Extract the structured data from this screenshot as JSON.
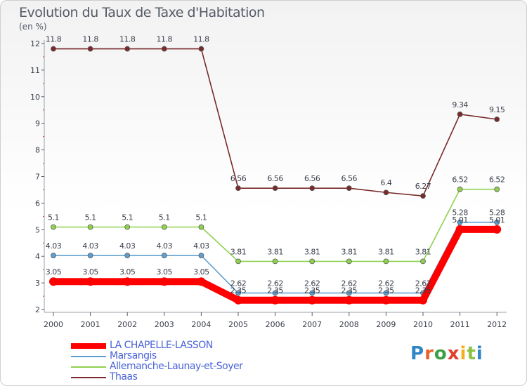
{
  "title": "Evolution du Taux de Taxe d'Habitation",
  "unit_label": "(en %)",
  "brand": {
    "text": "Proxiti",
    "letter_colors": [
      "#2f87c8",
      "#e8632b",
      "#3aa043",
      "#e23d2b",
      "#f2b01e",
      "#8ac341",
      "#2f87c8"
    ]
  },
  "chart_data": {
    "type": "line",
    "title": "Evolution du Taux de Taxe d'Habitation",
    "ylabel": "(en %)",
    "xlabel": "",
    "x": [
      "2000",
      "2001",
      "2002",
      "2003",
      "2004",
      "2005",
      "2006",
      "2007",
      "2008",
      "2009",
      "2010",
      "2011",
      "2012"
    ],
    "ylim": [
      2,
      12
    ],
    "yticks": [
      "2",
      "3",
      "4",
      "5",
      "6",
      "7",
      "8",
      "9",
      "10",
      "11",
      "12"
    ],
    "grid": false,
    "legend_position": "bottom-left",
    "series": [
      {
        "name": "LA CHAPELLE-LASSON",
        "color": "#ff0000",
        "emphasis": true,
        "values": [
          3.05,
          3.05,
          3.05,
          3.05,
          3.05,
          2.35,
          2.35,
          2.35,
          2.35,
          2.35,
          2.35,
          5.01,
          5.01
        ],
        "labels": [
          "3.05",
          "3.05",
          "3.05",
          "3.05",
          "3.05",
          "2.35",
          "2.35",
          "2.35",
          "2.35",
          "2.35",
          "2.35",
          "5.01",
          "5.01"
        ]
      },
      {
        "name": "Marsangis",
        "color": "#5f9fcf",
        "values": [
          4.03,
          4.03,
          4.03,
          4.03,
          4.03,
          2.62,
          2.62,
          2.62,
          2.62,
          2.62,
          2.62,
          5.28,
          5.28
        ],
        "labels": [
          "4.03",
          "4.03",
          "4.03",
          "4.03",
          "4.03",
          "2.62",
          "2.62",
          "2.62",
          "2.62",
          "2.62",
          "2.62",
          "5.28",
          "5.28"
        ]
      },
      {
        "name": "Allemanche-Launay-et-Soyer",
        "color": "#8fd14f",
        "values": [
          5.1,
          5.1,
          5.1,
          5.1,
          5.1,
          3.81,
          3.81,
          3.81,
          3.81,
          3.81,
          3.81,
          6.52,
          6.52
        ],
        "labels": [
          "5.1",
          "5.1",
          "5.1",
          "5.1",
          "5.1",
          "3.81",
          "3.81",
          "3.81",
          "3.81",
          "3.81",
          "3.81",
          "6.52",
          "6.52"
        ]
      },
      {
        "name": "Thaas",
        "color": "#7a2a2a",
        "values": [
          11.8,
          11.8,
          11.8,
          11.8,
          11.8,
          6.56,
          6.56,
          6.56,
          6.56,
          6.4,
          6.27,
          9.34,
          9.15
        ],
        "labels": [
          "11.8",
          "11.8",
          "11.8",
          "11.8",
          "11.8",
          "6.56",
          "6.56",
          "6.56",
          "6.56",
          "6.4",
          "6.27",
          "9.34",
          "9.15"
        ]
      }
    ]
  }
}
